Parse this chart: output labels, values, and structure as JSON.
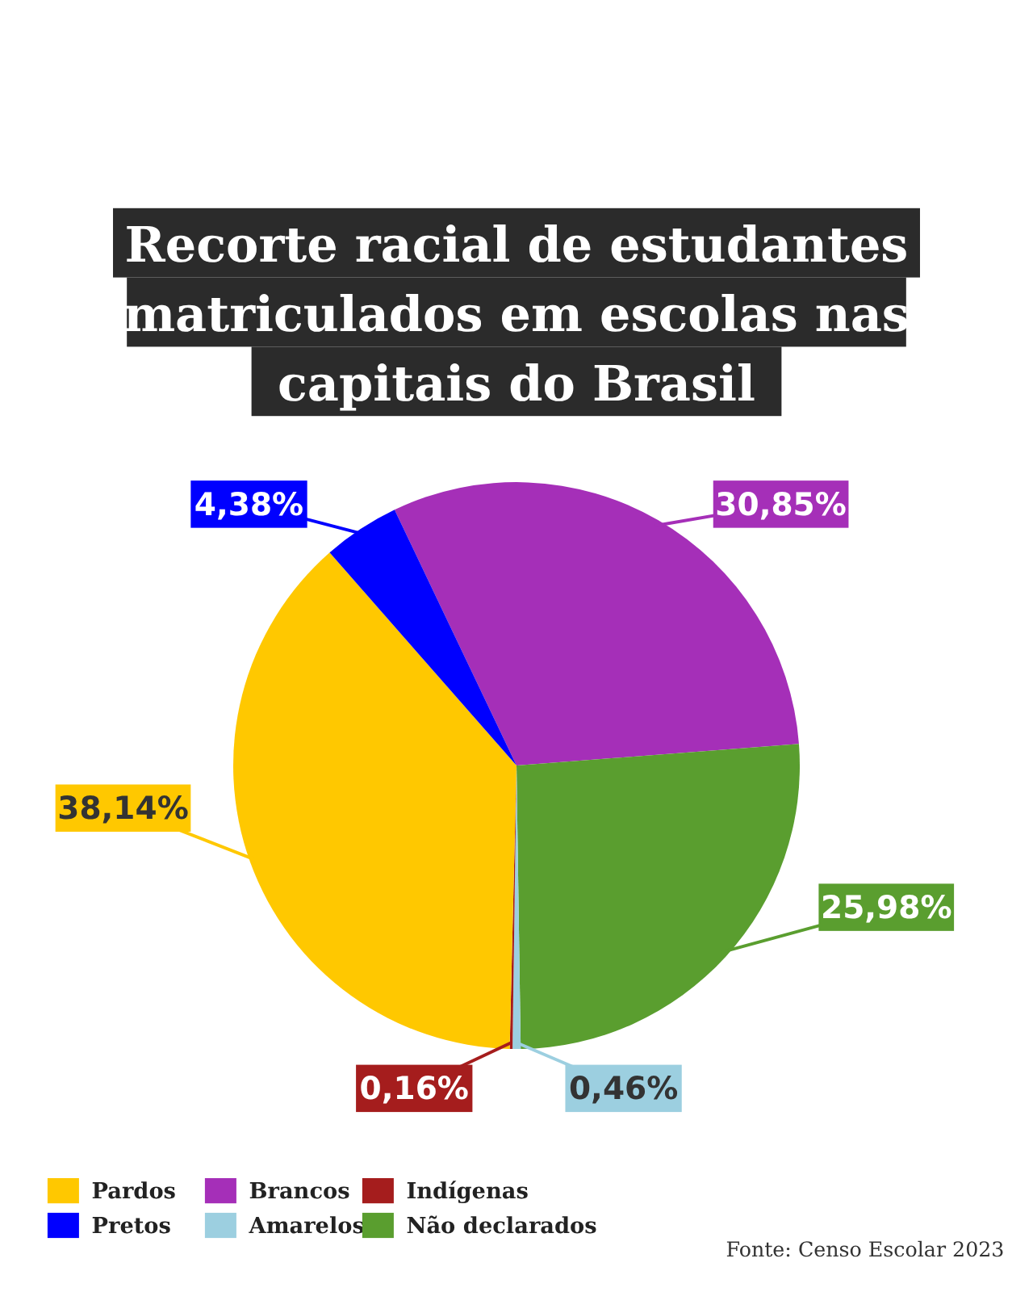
{
  "chart_data": {
    "type": "pie",
    "title": "Recorte racial de estudantes matriculados em escolas nas capitais do Brasil",
    "categories": [
      "Brancos",
      "Não declarados",
      "Amarelos",
      "Indígenas",
      "Pardos",
      "Pretos"
    ],
    "values": [
      30.85,
      25.98,
      0.46,
      0.16,
      38.14,
      4.38
    ],
    "colors": [
      "#a52fb8",
      "#5a9e2f",
      "#9ccfe0",
      "#a51d1d",
      "#ffc800",
      "#0000ff"
    ],
    "value_labels": [
      "30,85%",
      "25,98%",
      "0,46%",
      "0,16%",
      "38,14%",
      "4,38%"
    ],
    "legend": "bottom left",
    "annotations": [
      "Fonte: Censo Escolar 2023"
    ]
  }
}
